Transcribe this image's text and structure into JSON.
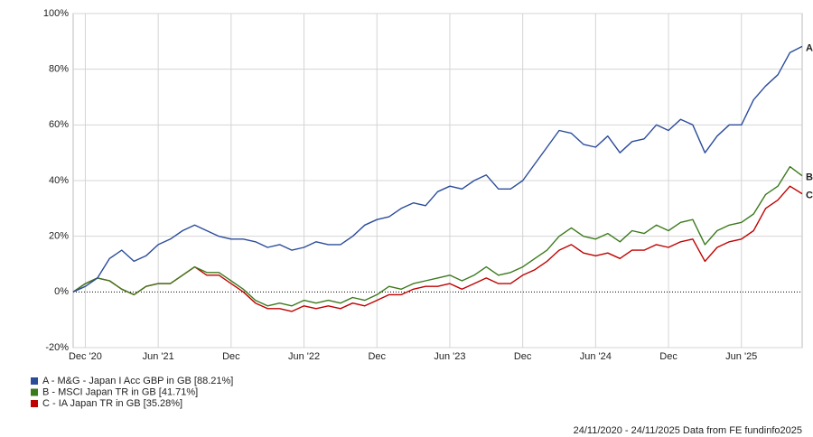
{
  "chart_data": {
    "type": "line",
    "categories": [
      null,
      "Dec '20",
      null,
      null,
      null,
      null,
      null,
      "Jun '21",
      null,
      null,
      null,
      null,
      null,
      "Dec",
      null,
      null,
      null,
      null,
      null,
      "Jun '22",
      null,
      null,
      null,
      null,
      null,
      "Dec",
      null,
      null,
      null,
      null,
      null,
      "Jun '23",
      null,
      null,
      null,
      null,
      null,
      "Dec",
      null,
      null,
      null,
      null,
      null,
      "Jun '24",
      null,
      null,
      null,
      null,
      null,
      "Dec",
      null,
      null,
      null,
      null,
      null,
      "Jun '25",
      null,
      null,
      null,
      null,
      null
    ],
    "series": [
      {
        "name": "A - M&G - Japan I Acc GBP in GB [88.21%]",
        "tag": "A",
        "color": "#2b4c9b",
        "values": [
          0,
          2,
          5,
          12,
          15,
          11,
          13,
          17,
          19,
          22,
          24,
          22,
          20,
          19,
          19,
          18,
          16,
          17,
          15,
          16,
          18,
          17,
          17,
          20,
          24,
          26,
          27,
          30,
          32,
          31,
          36,
          38,
          37,
          40,
          42,
          37,
          37,
          40,
          46,
          52,
          58,
          57,
          53,
          52,
          56,
          50,
          54,
          55,
          60,
          58,
          62,
          60,
          50,
          56,
          60,
          60,
          69,
          74,
          78,
          86,
          88.21
        ]
      },
      {
        "name": "B - MSCI Japan TR in GB [41.71%]",
        "tag": "B",
        "color": "#3b7a1c",
        "values": [
          0,
          3,
          5,
          4,
          1,
          -1,
          2,
          3,
          3,
          6,
          9,
          7,
          7,
          4,
          1,
          -3,
          -5,
          -4,
          -5,
          -3,
          -4,
          -3,
          -4,
          -2,
          -3,
          -1,
          2,
          1,
          3,
          4,
          5,
          6,
          4,
          6,
          9,
          6,
          7,
          9,
          12,
          15,
          20,
          23,
          20,
          19,
          21,
          18,
          22,
          21,
          24,
          22,
          25,
          26,
          17,
          22,
          24,
          25,
          28,
          35,
          38,
          45,
          41.71
        ]
      },
      {
        "name": "C - IA Japan TR in GB [35.28%]",
        "tag": "C",
        "color": "#c00000",
        "values": [
          0,
          3,
          5,
          4,
          1,
          -1,
          2,
          3,
          3,
          6,
          9,
          6,
          6,
          3,
          0,
          -4,
          -6,
          -6,
          -7,
          -5,
          -6,
          -5,
          -6,
          -4,
          -5,
          -3,
          -1,
          -1,
          1,
          2,
          2,
          3,
          1,
          3,
          5,
          3,
          3,
          6,
          8,
          11,
          15,
          17,
          14,
          13,
          14,
          12,
          15,
          15,
          17,
          16,
          18,
          19,
          11,
          16,
          18,
          19,
          22,
          30,
          33,
          38,
          35.28
        ]
      }
    ],
    "ylim": [
      -20,
      100
    ],
    "yticks": [
      {
        "value": -20,
        "label": "-20%"
      },
      {
        "value": 0,
        "label": "0%"
      },
      {
        "value": 20,
        "label": "20%"
      },
      {
        "value": 40,
        "label": "40%"
      },
      {
        "value": 60,
        "label": "60%"
      },
      {
        "value": 80,
        "label": "80%"
      },
      {
        "value": 100,
        "label": "100%"
      }
    ],
    "grid": true,
    "footer": "24/11/2020 - 24/11/2025 Data from FE fundinfo2025"
  }
}
